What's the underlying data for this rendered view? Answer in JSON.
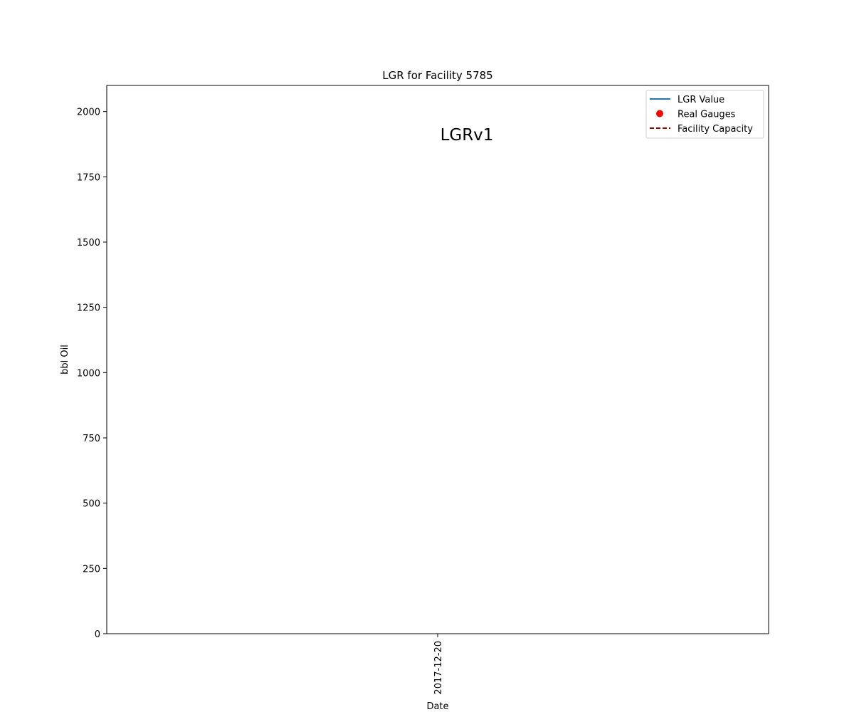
{
  "chart_data": {
    "type": "line",
    "title": "LGR for Facility 5785",
    "xlabel": "Date",
    "ylabel": "bbl Oil",
    "annotation": "LGRv1",
    "x_categories": [
      "2017-12-20"
    ],
    "yticks": [
      0,
      250,
      500,
      750,
      1000,
      1250,
      1500,
      1750,
      2000
    ],
    "ylim": [
      0,
      2100
    ],
    "grid": false,
    "legend_placement": "top-right",
    "legend": [
      {
        "label": "LGR Value",
        "style": "line",
        "color": "#1f77b4"
      },
      {
        "label": "Real Gauges",
        "style": "marker",
        "color": "#ff0000"
      },
      {
        "label": "Facility Capacity",
        "style": "dashed-line",
        "color": "#8b0000"
      }
    ],
    "series": [
      {
        "name": "LGR Value",
        "values": []
      },
      {
        "name": "Real Gauges",
        "values": []
      },
      {
        "name": "Facility Capacity",
        "values": []
      }
    ]
  }
}
